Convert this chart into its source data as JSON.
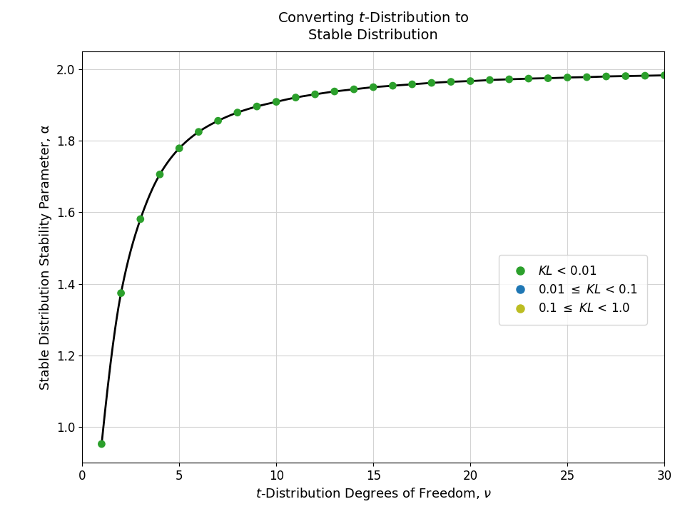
{
  "ylabel": "Stable Distribution Stability Parameter, α",
  "xlim": [
    0,
    30
  ],
  "ylim": [
    0.9,
    2.05
  ],
  "xticks": [
    0,
    5,
    10,
    15,
    20,
    25,
    30
  ],
  "yticks": [
    1.0,
    1.2,
    1.4,
    1.6,
    1.8,
    2.0
  ],
  "nu_values": [
    1,
    2,
    3,
    4,
    5,
    6,
    7,
    8,
    9,
    10,
    11,
    12,
    13,
    14,
    15,
    16,
    17,
    18,
    19,
    20,
    21,
    22,
    23,
    24,
    25,
    26,
    27,
    28,
    29,
    30
  ],
  "alpha_values": [
    0.952,
    1.374,
    1.581,
    1.706,
    1.779,
    1.825,
    1.856,
    1.879,
    1.896,
    1.909,
    1.921,
    1.93,
    1.938,
    1.944,
    1.95,
    1.954,
    1.958,
    1.962,
    1.965,
    1.967,
    1.97,
    1.972,
    1.974,
    1.975,
    1.977,
    1.978,
    1.98,
    1.981,
    1.982,
    1.983
  ],
  "line_color": "#000000",
  "dot_color_green": "#2ca02c",
  "dot_color_blue": "#1f77b4",
  "dot_color_olive": "#bcbd22",
  "legend_colors": [
    "#2ca02c",
    "#1f77b4",
    "#bcbd22"
  ],
  "dot_size": 60,
  "figsize": [
    9.6,
    7.2
  ],
  "dpi": 100
}
